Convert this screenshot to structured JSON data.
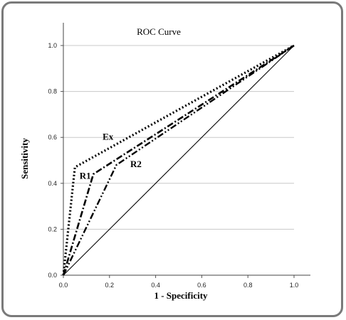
{
  "chart_data": {
    "type": "line",
    "title": "ROC Curve",
    "xlabel": "1 - Specificity",
    "ylabel": "Sensitivity",
    "xlim": [
      0,
      1
    ],
    "ylim": [
      0,
      1
    ],
    "x_ticks": [
      "0.0",
      "0.2",
      "0.4",
      "0.6",
      "0.8",
      "1.0"
    ],
    "y_ticks": [
      "0.0",
      "0.2",
      "0.4",
      "0.6",
      "0.8",
      "1.0"
    ],
    "grid": "horizontal",
    "series": [
      {
        "name": "Ex",
        "style": "dotted",
        "x": [
          0,
          0.05,
          1
        ],
        "y": [
          0,
          0.47,
          1
        ]
      },
      {
        "name": "R1",
        "style": "dash-dot",
        "x": [
          0,
          0.13,
          1
        ],
        "y": [
          0,
          0.44,
          1
        ]
      },
      {
        "name": "R2",
        "style": "dash-dot-dot",
        "x": [
          0,
          0.23,
          1
        ],
        "y": [
          0,
          0.48,
          1
        ]
      },
      {
        "name": "",
        "style": "solid",
        "x": [
          0,
          1
        ],
        "y": [
          0,
          1
        ]
      }
    ],
    "annotations": [
      "Ex",
      "R1",
      "R2"
    ]
  }
}
